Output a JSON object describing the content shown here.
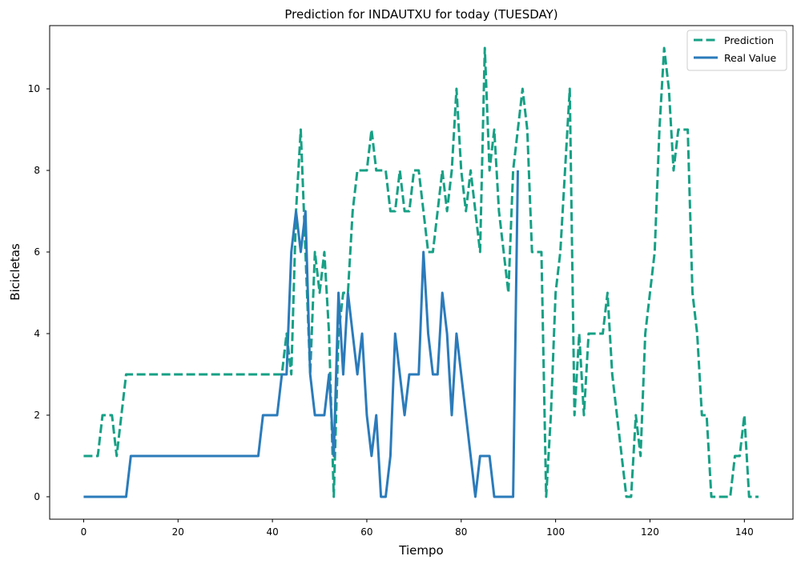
{
  "chart_data": {
    "type": "line",
    "title": "Prediction for INDAUTXU for today (TUESDAY)",
    "xlabel": "Tiempo",
    "ylabel": "Bicicletas",
    "xlim": [
      -7.2,
      150.3
    ],
    "ylim": [
      -0.55,
      11.55
    ],
    "xticks": [
      0,
      20,
      40,
      60,
      80,
      100,
      120,
      140
    ],
    "yticks": [
      0,
      2,
      4,
      6,
      8,
      10
    ],
    "grid": false,
    "legend_position": "top-right",
    "series": [
      {
        "name": "Prediction",
        "color": "#17a085",
        "style": "dashed",
        "values": [
          1,
          1,
          1,
          1,
          2,
          2,
          2,
          1,
          2,
          3,
          3,
          3,
          3,
          3,
          3,
          3,
          3,
          3,
          3,
          3,
          3,
          3,
          3,
          3,
          3,
          3,
          3,
          3,
          3,
          3,
          3,
          3,
          3,
          3,
          3,
          3,
          3,
          3,
          3,
          3,
          3,
          3,
          3,
          4,
          3,
          7,
          9,
          6,
          3,
          6,
          5,
          6,
          4,
          0,
          4,
          5,
          5,
          7,
          8,
          8,
          8,
          9,
          8,
          8,
          8,
          7,
          7,
          8,
          7,
          7,
          8,
          8,
          7,
          6,
          6,
          7,
          8,
          7,
          8,
          10,
          8,
          7,
          8,
          7,
          6,
          11,
          8,
          9,
          7,
          6,
          5,
          8,
          9,
          10,
          9,
          6,
          6,
          6,
          0,
          2,
          5,
          6,
          8,
          10,
          2,
          4,
          2,
          4,
          4,
          4,
          4,
          5,
          3,
          2,
          1,
          0,
          0,
          2,
          1,
          4,
          5,
          6,
          9,
          11,
          10,
          8,
          9,
          9,
          9,
          5,
          4,
          2,
          2,
          0,
          0,
          0,
          0,
          0,
          1,
          1,
          2,
          0,
          0,
          0
        ]
      },
      {
        "name": "Real Value",
        "color": "#2b7bba",
        "style": "solid",
        "values": [
          0,
          0,
          0,
          0,
          0,
          0,
          0,
          0,
          0,
          0,
          1,
          1,
          1,
          1,
          1,
          1,
          1,
          1,
          1,
          1,
          1,
          1,
          1,
          1,
          1,
          1,
          1,
          1,
          1,
          1,
          1,
          1,
          1,
          1,
          1,
          1,
          1,
          1,
          2,
          2,
          2,
          2,
          3,
          3,
          6,
          7,
          6,
          7,
          3,
          2,
          2,
          2,
          3,
          1,
          5,
          3,
          5,
          4,
          3,
          4,
          2,
          1,
          2,
          0,
          0,
          1,
          4,
          3,
          2,
          3,
          3,
          3,
          6,
          4,
          3,
          3,
          5,
          4,
          2,
          4,
          3,
          2,
          1,
          0,
          1,
          1,
          1,
          0,
          0,
          0,
          0,
          0,
          8
        ]
      }
    ]
  }
}
